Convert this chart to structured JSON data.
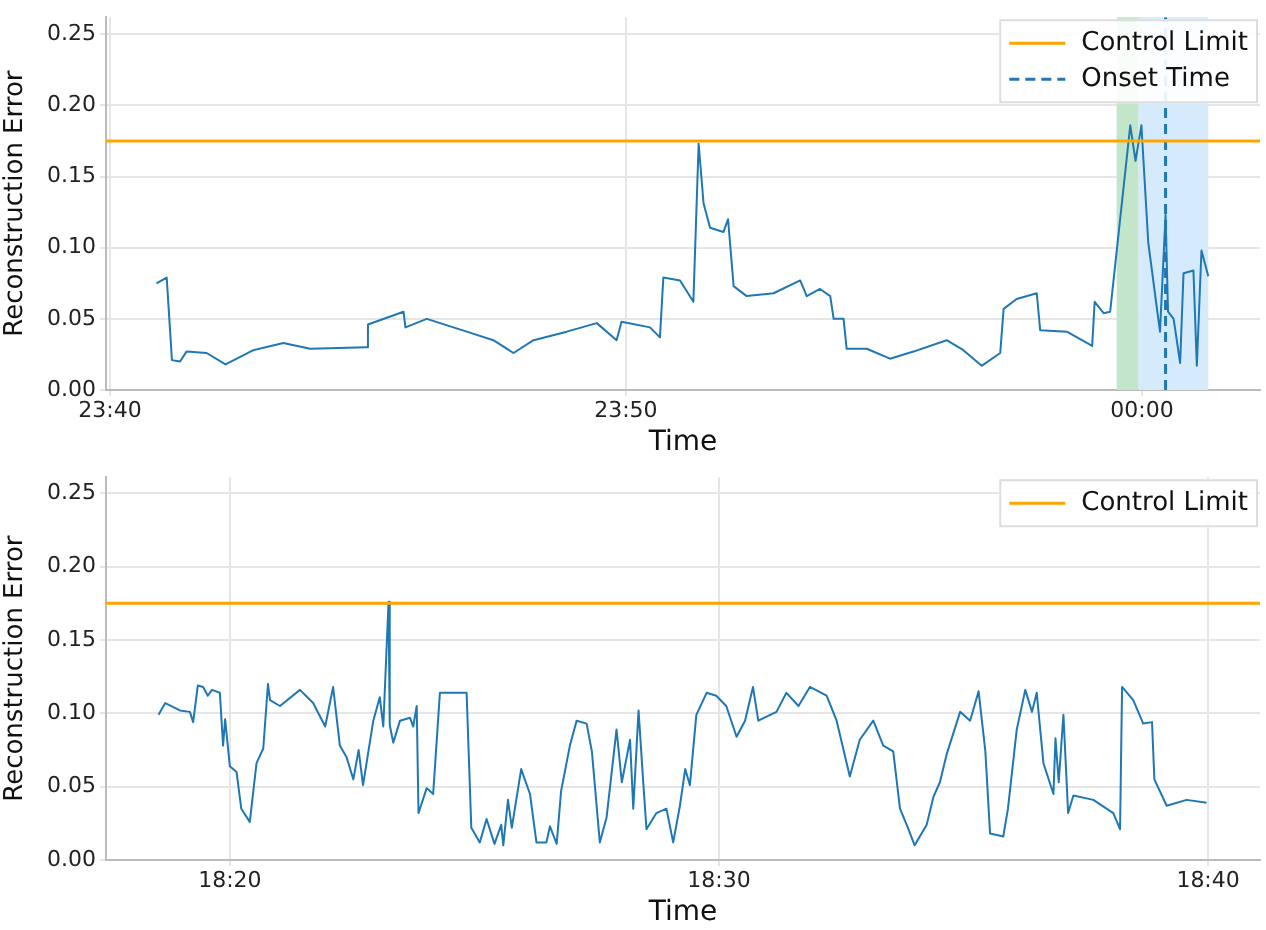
{
  "chart_data": [
    {
      "type": "line",
      "xlabel": "Time",
      "ylabel": "Reconstruction Error",
      "xlim": [
        23.6654,
        24.0381
      ],
      "xticks": [
        {
          "value": 23.6667,
          "label": "23:40"
        },
        {
          "value": 23.8333,
          "label": "23:50"
        },
        {
          "value": 24,
          "label": "00:00"
        }
      ],
      "ylim": [
        0,
        0.262
      ],
      "yticks": [
        {
          "value": 0,
          "label": "0.00"
        },
        {
          "value": 0.05,
          "label": "0.05"
        },
        {
          "value": 0.1,
          "label": "0.10"
        },
        {
          "value": 0.15,
          "label": "0.15"
        },
        {
          "value": 0.2,
          "label": "0.20"
        },
        {
          "value": 0.25,
          "label": "0.25"
        }
      ],
      "grid": true,
      "legend": "top right",
      "x": [
        23.6817,
        23.685,
        23.6867,
        23.6893,
        23.6914,
        23.6979,
        23.704,
        23.713,
        23.7227,
        23.7313,
        23.7496,
        23.75,
        23.7615,
        23.7621,
        23.769,
        23.7819,
        23.7905,
        23.797,
        23.8035,
        23.8142,
        23.8239,
        23.8303,
        23.8319,
        23.8411,
        23.8443,
        23.8454,
        23.8508,
        23.8551,
        23.8568,
        23.8584,
        23.8605,
        23.8648,
        23.8663,
        23.8681,
        23.8723,
        23.881,
        23.8896,
        23.8917,
        23.896,
        23.8993,
        23.9004,
        23.9036,
        23.9046,
        23.9111,
        23.9186,
        23.9262,
        23.9369,
        23.9423,
        23.9482,
        23.9542,
        23.9553,
        23.9595,
        23.966,
        23.9671,
        23.9757,
        23.9839,
        23.9847,
        23.9876,
        23.9897,
        23.9908,
        23.994,
        23.9962,
        23.9979,
        23.9998,
        24.0011,
        24.002,
        24.0047,
        24.0058,
        24.0076,
        24.0084,
        24.0102,
        24.0123,
        24.0134,
        24.0166,
        24.0177,
        24.0192,
        24.0214
      ],
      "series": [
        {
          "color": "#1f77b4",
          "values": [
            0.075,
            0.079,
            0.021,
            0.02,
            0.027,
            0.026,
            0.018,
            0.028,
            0.033,
            0.029,
            0.03,
            0.046,
            0.055,
            0.044,
            0.05,
            0.041,
            0.035,
            0.026,
            0.035,
            0.041,
            0.047,
            0.035,
            0.048,
            0.044,
            0.037,
            0.079,
            0.077,
            0.062,
            0.173,
            0.131,
            0.114,
            0.111,
            0.12,
            0.073,
            0.066,
            0.068,
            0.077,
            0.066,
            0.071,
            0.066,
            0.05,
            0.05,
            0.029,
            0.029,
            0.022,
            0.027,
            0.035,
            0.028,
            0.017,
            0.026,
            0.057,
            0.064,
            0.068,
            0.042,
            0.041,
            0.031,
            0.062,
            0.054,
            0.055,
            null,
            null,
            0.186,
            0.161,
            0.186,
            null,
            0.104,
            0.059,
            0.041,
            0.123,
            0.055,
            0.05,
            0.019,
            0.082,
            0.084,
            0.017,
            0.098,
            0.08
          ]
        }
      ],
      "ref_lines": [
        {
          "axis": "y",
          "value": 0.175,
          "label": "Control Limit",
          "color": "#ffa500",
          "line_style": "solid"
        },
        {
          "axis": "x",
          "value": 24.0076,
          "label": "Onset Time",
          "color": "#1f77b4",
          "line_style": "dashed"
        }
      ],
      "bands": [
        {
          "axis": "x",
          "from": 23.9918,
          "to": 23.9989,
          "color": "#c3e6cb"
        },
        {
          "axis": "x",
          "from": 23.9989,
          "to": 24.0214,
          "color": "#d5ebfb"
        }
      ]
    },
    {
      "type": "line",
      "xlabel": "Time",
      "ylabel": "Reconstruction Error",
      "xlim": [
        18.2911,
        18.6844
      ],
      "xticks": [
        {
          "value": 18.3333,
          "label": "18:20"
        },
        {
          "value": 18.5,
          "label": "18:30"
        },
        {
          "value": 18.6667,
          "label": "18:40"
        }
      ],
      "ylim": [
        0,
        0.261
      ],
      "yticks": [
        {
          "value": 0,
          "label": "0.00"
        },
        {
          "value": 0.05,
          "label": "0.05"
        },
        {
          "value": 0.1,
          "label": "0.10"
        },
        {
          "value": 0.15,
          "label": "0.15"
        },
        {
          "value": 0.2,
          "label": "0.20"
        },
        {
          "value": 0.25,
          "label": "0.25"
        }
      ],
      "grid": true,
      "legend": "top right",
      "x": [
        18.309,
        18.3113,
        18.3163,
        18.3197,
        18.3208,
        18.3224,
        18.3242,
        18.3258,
        18.3272,
        18.3299,
        18.331,
        18.3317,
        18.3333,
        18.3356,
        18.3372,
        18.3401,
        18.3424,
        18.3447,
        18.3463,
        18.347,
        18.3504,
        18.3572,
        18.3617,
        18.3658,
        18.3685,
        18.3708,
        18.3731,
        18.3754,
        18.3772,
        18.3787,
        18.3822,
        18.3844,
        18.3856,
        18.3874,
        18.3878,
        18.389,
        18.3913,
        18.3947,
        18.3958,
        18.397,
        18.3976,
        18.4004,
        18.4026,
        18.4049,
        18.414,
        18.4156,
        18.4185,
        18.4208,
        18.4235,
        18.4258,
        18.4265,
        18.4281,
        18.4294,
        18.4326,
        18.4356,
        18.4378,
        18.4412,
        18.4424,
        18.4447,
        18.4462,
        18.4492,
        18.4515,
        18.4549,
        18.4567,
        18.4594,
        18.4617,
        18.4651,
        18.4669,
        18.4697,
        18.4708,
        18.4726,
        18.4742,
        18.4753,
        18.4787,
        18.4821,
        18.4844,
        18.4867,
        18.4885,
        18.4901,
        18.4923,
        18.4958,
        18.4991,
        18.5025,
        18.506,
        18.5089,
        18.5116,
        18.5134,
        18.5196,
        18.523,
        18.5271,
        18.531,
        18.5367,
        18.5401,
        18.5446,
        18.548,
        18.5526,
        18.556,
        18.5594,
        18.5617,
        18.564,
        18.5667,
        18.5708,
        18.5731,
        18.5753,
        18.5776,
        18.5822,
        18.5856,
        18.5885,
        18.5908,
        18.5924,
        18.5969,
        18.5985,
        18.6015,
        18.6044,
        18.6067,
        18.6083,
        18.6106,
        18.614,
        18.6147,
        18.6158,
        18.6174,
        18.619,
        18.6208,
        18.6276,
        18.6344,
        18.6367,
        18.6374,
        18.6412,
        18.6446,
        18.6476,
        18.6484,
        18.6526,
        18.6594,
        18.6662
      ],
      "series": [
        {
          "color": "#1f77b4",
          "values": [
            0.099,
            0.107,
            0.102,
            0.101,
            0.094,
            0.119,
            0.118,
            0.112,
            0.116,
            0.114,
            0.078,
            0.096,
            0.064,
            0.06,
            0.035,
            0.026,
            0.066,
            0.076,
            0.12,
            0.109,
            0.105,
            0.116,
            0.107,
            0.091,
            0.118,
            0.078,
            0.07,
            0.055,
            0.075,
            0.051,
            0.095,
            0.111,
            0.091,
            0.176,
            0.092,
            0.08,
            0.095,
            0.097,
            0.091,
            0.105,
            0.032,
            0.049,
            0.045,
            0.114,
            0.114,
            0.022,
            0.012,
            0.028,
            0.011,
            0.024,
            0.01,
            0.041,
            0.022,
            0.062,
            0.045,
            0.012,
            0.012,
            0.023,
            0.011,
            0.047,
            0.078,
            0.095,
            0.093,
            0.074,
            0.012,
            0.029,
            0.089,
            0.053,
            0.082,
            0.035,
            0.102,
            0.053,
            0.021,
            0.032,
            0.035,
            0.012,
            0.037,
            0.062,
            0.051,
            0.099,
            0.114,
            0.112,
            0.105,
            0.084,
            0.095,
            0.118,
            0.095,
            0.101,
            0.114,
            0.105,
            0.118,
            0.112,
            0.095,
            0.057,
            0.082,
            0.095,
            0.078,
            0.074,
            0.035,
            0.024,
            0.01,
            0.024,
            0.043,
            0.053,
            0.072,
            0.101,
            0.095,
            0.115,
            0.074,
            0.018,
            0.016,
            0.035,
            0.089,
            0.116,
            0.101,
            0.114,
            0.066,
            0.045,
            0.083,
            0.053,
            0.099,
            0.032,
            0.044,
            0.041,
            0.032,
            0.021,
            0.118,
            0.109,
            0.093,
            0.094,
            0.055,
            0.037,
            0.041,
            0.039
          ]
        }
      ],
      "ref_lines": [
        {
          "axis": "y",
          "value": 0.175,
          "label": "Control Limit",
          "color": "#ffa500",
          "line_style": "solid"
        }
      ]
    }
  ]
}
